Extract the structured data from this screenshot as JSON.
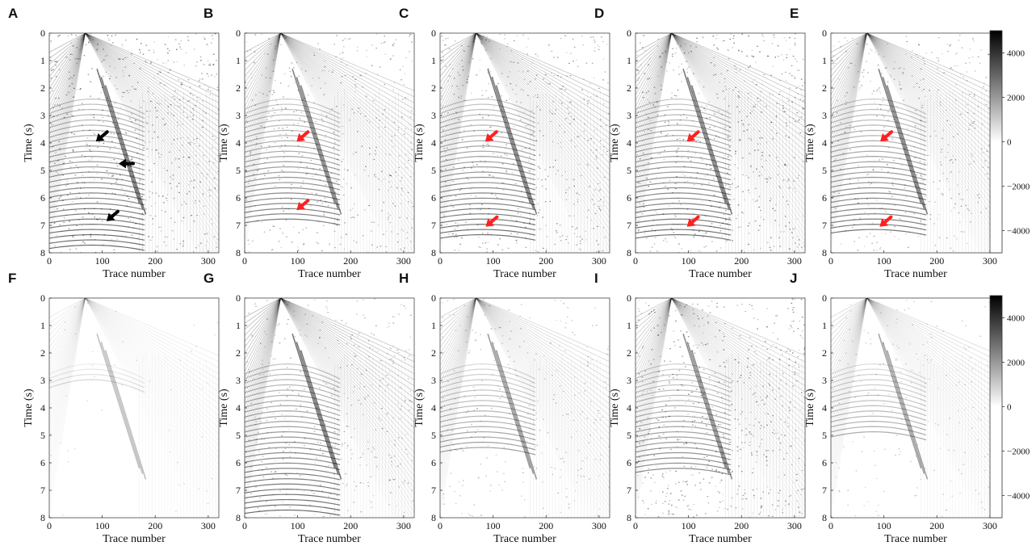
{
  "figure": {
    "panel_letters_top": [
      "A",
      "B",
      "C",
      "D",
      "E"
    ],
    "panel_letters_bottom": [
      "F",
      "G",
      "H",
      "I",
      "J"
    ],
    "xlabel": "Trace number",
    "ylabel": "Time (s)",
    "x_ticks": [
      0,
      100,
      200,
      300
    ],
    "y_ticks": [
      0,
      1,
      2,
      3,
      4,
      5,
      6,
      7,
      8
    ],
    "xlim": [
      0,
      320
    ],
    "ylim": [
      0,
      8
    ],
    "colorbar_ticks": [
      4000,
      2000,
      0,
      -2000,
      -4000
    ],
    "colorbar_ticks_text": [
      "4000",
      "2000",
      "0",
      "−2000",
      "−4000"
    ],
    "colorbar_range": [
      -5000,
      5000
    ],
    "colormap": "gray (black = high, white = low)",
    "arrow_colors": {
      "black": "#000000",
      "red": "#ff2020"
    }
  },
  "chart_data": [
    {
      "type": "heatmap",
      "panel": "A",
      "xlabel": "Trace number",
      "ylabel": "Time (s)",
      "xlim": [
        0,
        320
      ],
      "ylim": [
        8,
        0
      ],
      "density": 0.95,
      "noise": 0.75,
      "arrows": [
        {
          "color": "black",
          "tip_trace": 88,
          "tip_time": 3.95
        },
        {
          "color": "black",
          "tip_trace": 131,
          "tip_time": 4.75
        },
        {
          "color": "black",
          "tip_trace": 108,
          "tip_time": 6.85
        }
      ]
    },
    {
      "type": "heatmap",
      "panel": "B",
      "xlabel": "Trace number",
      "ylabel": "Time (s)",
      "xlim": [
        0,
        320
      ],
      "ylim": [
        8,
        0
      ],
      "density": 0.8,
      "noise": 0.55,
      "arrows": [
        {
          "color": "red",
          "tip_trace": 98,
          "tip_time": 3.95
        },
        {
          "color": "red",
          "tip_trace": 98,
          "tip_time": 6.45
        }
      ]
    },
    {
      "type": "heatmap",
      "panel": "C",
      "xlabel": "Trace number",
      "ylabel": "Time (s)",
      "xlim": [
        0,
        320
      ],
      "ylim": [
        8,
        0
      ],
      "density": 0.9,
      "noise": 0.6,
      "arrows": [
        {
          "color": "red",
          "tip_trace": 85,
          "tip_time": 3.95
        },
        {
          "color": "red",
          "tip_trace": 86,
          "tip_time": 7.05
        }
      ]
    },
    {
      "type": "heatmap",
      "panel": "D",
      "xlabel": "Trace number",
      "ylabel": "Time (s)",
      "xlim": [
        0,
        320
      ],
      "ylim": [
        8,
        0
      ],
      "density": 0.9,
      "noise": 0.7,
      "arrows": [
        {
          "color": "red",
          "tip_trace": 97,
          "tip_time": 3.95
        },
        {
          "color": "red",
          "tip_trace": 97,
          "tip_time": 7.05
        }
      ]
    },
    {
      "type": "heatmap",
      "panel": "E",
      "xlabel": "Trace number",
      "ylabel": "Time (s)",
      "xlim": [
        0,
        320
      ],
      "ylim": [
        8,
        0
      ],
      "density": 0.85,
      "noise": 0.5,
      "arrows": [
        {
          "color": "red",
          "tip_trace": 93,
          "tip_time": 3.95
        },
        {
          "color": "red",
          "tip_trace": 92,
          "tip_time": 7.05
        }
      ]
    },
    {
      "type": "heatmap",
      "panel": "F",
      "xlabel": "Trace number",
      "ylabel": "Time (s)",
      "xlim": [
        0,
        320
      ],
      "ylim": [
        8,
        0
      ],
      "density": 0.12,
      "noise": 0.05,
      "arrows": []
    },
    {
      "type": "heatmap",
      "panel": "G",
      "xlabel": "Trace number",
      "ylabel": "Time (s)",
      "xlim": [
        0,
        320
      ],
      "ylim": [
        8,
        0
      ],
      "density": 0.95,
      "noise": 0.45,
      "arrows": []
    },
    {
      "type": "heatmap",
      "panel": "H",
      "xlabel": "Trace number",
      "ylabel": "Time (s)",
      "xlim": [
        0,
        320
      ],
      "ylim": [
        8,
        0
      ],
      "density": 0.55,
      "noise": 0.3,
      "arrows": []
    },
    {
      "type": "heatmap",
      "panel": "I",
      "xlabel": "Trace number",
      "ylabel": "Time (s)",
      "xlim": [
        0,
        320
      ],
      "ylim": [
        8,
        0
      ],
      "density": 0.7,
      "noise": 0.7,
      "arrows": []
    },
    {
      "type": "heatmap",
      "panel": "J",
      "xlabel": "Trace number",
      "ylabel": "Time (s)",
      "xlim": [
        0,
        320
      ],
      "ylim": [
        8,
        0
      ],
      "density": 0.45,
      "noise": 0.2,
      "arrows": []
    }
  ]
}
